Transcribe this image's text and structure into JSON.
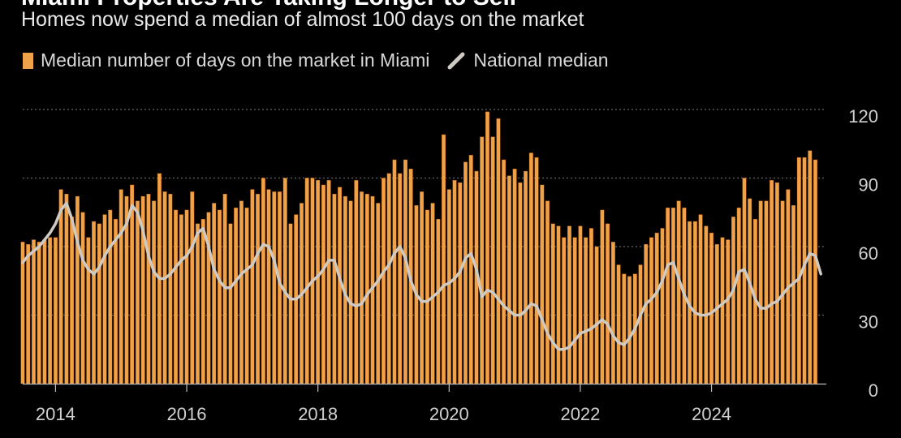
{
  "chart_data": {
    "type": "bar",
    "title": "Miami Properties Are Taking Longer to Sell",
    "subtitle": "Homes now spend a median of almost 100 days on the market",
    "legend": {
      "bars_label": "Median number of days on the market in Miami",
      "line_label": "National median"
    },
    "x_tick_labels": [
      "2014",
      "2016",
      "2018",
      "2020",
      "2022",
      "2024"
    ],
    "x_tick_years": [
      2014,
      2016,
      2018,
      2020,
      2022,
      2024
    ],
    "y_ticks": [
      0,
      30,
      60,
      90,
      120
    ],
    "ylim": [
      0,
      120
    ],
    "xlim": [
      2013.5,
      2025.75
    ],
    "start": {
      "year": 2013,
      "month": 7
    },
    "grid": true,
    "y_axis_side": "right",
    "series": [
      {
        "name": "Median number of days on the market in Miami",
        "kind": "bar",
        "values": [
          62,
          61,
          63,
          62,
          63,
          64,
          64,
          85,
          83,
          73,
          82,
          75,
          64,
          71,
          70,
          74,
          76,
          72,
          85,
          82,
          87,
          80,
          82,
          83,
          80,
          92,
          84,
          83,
          76,
          74,
          76,
          84,
          70,
          72,
          75,
          79,
          76,
          83,
          70,
          77,
          80,
          77,
          85,
          83,
          90,
          85,
          84,
          84,
          90,
          70,
          74,
          79,
          90,
          90,
          89,
          87,
          89,
          83,
          86,
          82,
          80,
          89,
          84,
          83,
          82,
          79,
          90,
          92,
          98,
          92,
          98,
          94,
          78,
          84,
          76,
          79,
          72,
          109,
          85,
          89,
          88,
          97,
          100,
          93,
          108,
          119,
          108,
          116,
          98,
          91,
          94,
          88,
          93,
          101,
          99,
          87,
          80,
          70,
          69,
          64,
          69,
          64,
          69,
          64,
          68,
          60,
          76,
          70,
          62,
          52,
          48,
          47,
          48,
          52,
          61,
          64,
          66,
          68,
          77,
          77,
          80,
          77,
          71,
          71,
          74,
          69,
          66,
          61,
          64,
          63,
          73,
          77,
          90,
          81,
          72,
          80,
          80,
          89,
          88,
          80,
          85,
          78,
          99,
          99,
          102,
          98
        ]
      },
      {
        "name": "National median",
        "kind": "line",
        "values": [
          53,
          56,
          58,
          60,
          63,
          66,
          70,
          76,
          79,
          72,
          62,
          54,
          50,
          48,
          51,
          56,
          60,
          63,
          66,
          70,
          78,
          75,
          67,
          56,
          49,
          46,
          46,
          48,
          51,
          54,
          56,
          60,
          66,
          68,
          60,
          50,
          45,
          42,
          42,
          45,
          48,
          50,
          52,
          57,
          61,
          60,
          54,
          44,
          40,
          37,
          37,
          39,
          42,
          45,
          47,
          50,
          54,
          54,
          46,
          39,
          35,
          34,
          35,
          39,
          42,
          45,
          49,
          52,
          57,
          60,
          55,
          45,
          39,
          36,
          36,
          38,
          40,
          43,
          44,
          46,
          49,
          55,
          57,
          50,
          38,
          41,
          40,
          37,
          34,
          32,
          30,
          30,
          32,
          35,
          34,
          28,
          22,
          18,
          15,
          15,
          16,
          19,
          22,
          23,
          24,
          26,
          28,
          26,
          21,
          18,
          17,
          20,
          24,
          30,
          35,
          37,
          40,
          45,
          52,
          53,
          46,
          39,
          34,
          31,
          30,
          30,
          31,
          33,
          35,
          37,
          41,
          49,
          50,
          44,
          37,
          33,
          33,
          35,
          36,
          39,
          42,
          44,
          46,
          52,
          57,
          56,
          48
        ]
      }
    ]
  },
  "colors": {
    "bar": "#f0a24a",
    "bar_edge": "#b85f00",
    "line": "#cfcac4",
    "grid": "#666666",
    "axis": "#bfbfbf",
    "background": "#000000"
  }
}
